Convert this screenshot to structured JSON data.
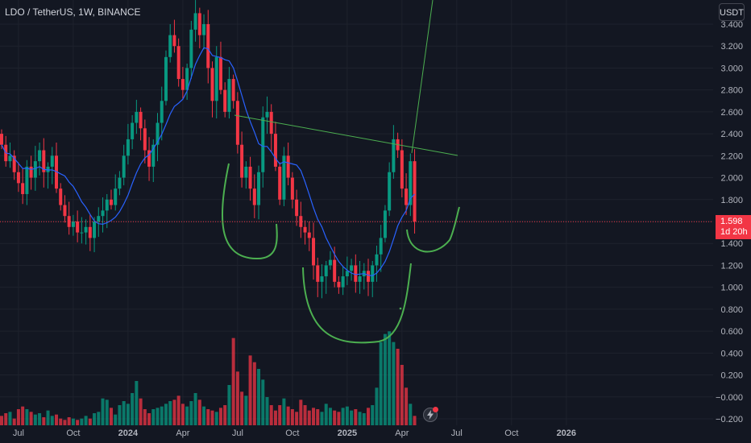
{
  "header": {
    "symbol": "LDO / TetherUS, 1W, BINANCE"
  },
  "currency_button": {
    "label": "USDT"
  },
  "price_tag": {
    "price": "1.598",
    "countdown": "1d 20h"
  },
  "chart_data": {
    "type": "candlestick",
    "symbol": "LDO / TetherUS",
    "interval": "1W",
    "exchange": "BINANCE",
    "ylim": [
      -0.25,
      3.55
    ],
    "y_ticks": [
      "3.400",
      "3.200",
      "3.000",
      "2.800",
      "2.600",
      "2.400",
      "2.200",
      "2.000",
      "1.800",
      "1.600",
      "1.400",
      "1.200",
      "1.000",
      "0.800",
      "0.600",
      "0.400",
      "0.200",
      "−0.000",
      "−0.200"
    ],
    "y_tick_values": [
      3.4,
      3.2,
      3.0,
      2.8,
      2.6,
      2.4,
      2.2,
      2.0,
      1.8,
      1.6,
      1.4,
      1.2,
      1.0,
      0.8,
      0.6,
      0.4,
      0.2,
      0.0,
      -0.2
    ],
    "x_ticks": [
      "Jul",
      "Oct",
      "2024",
      "Apr",
      "Jul",
      "Oct",
      "2025",
      "Apr",
      "Jul",
      "Oct",
      "2026"
    ],
    "x_tick_weeks": [
      4,
      17,
      30,
      43,
      56,
      69,
      82,
      95,
      108,
      121,
      134
    ],
    "last_price": 1.598,
    "up_color": "#089981",
    "down_color": "#f23645",
    "ma_color": "#2962ff",
    "close": [
      2.3,
      2.15,
      2.2,
      2.05,
      1.95,
      1.85,
      2.1,
      2.0,
      2.15,
      2.25,
      2.05,
      2.1,
      2.2,
      1.9,
      1.75,
      1.65,
      1.55,
      1.6,
      1.5,
      1.5,
      1.55,
      1.45,
      1.6,
      1.65,
      1.7,
      1.8,
      1.75,
      1.9,
      2.0,
      2.2,
      2.35,
      2.5,
      2.6,
      2.45,
      2.25,
      2.1,
      2.3,
      2.5,
      2.7,
      3.1,
      3.3,
      3.2,
      2.9,
      2.8,
      3.0,
      3.35,
      3.5,
      3.3,
      3.4,
      3.0,
      2.7,
      3.1,
      2.8,
      2.6,
      2.9,
      2.7,
      2.3,
      2.0,
      2.1,
      1.9,
      1.75,
      2.05,
      2.55,
      2.6,
      2.4,
      2.1,
      1.8,
      2.2,
      2.0,
      1.8,
      1.65,
      1.55,
      1.5,
      1.45,
      1.2,
      1.05,
      1.1,
      1.2,
      1.25,
      1.05,
      1.0,
      1.1,
      1.15,
      1.2,
      1.05,
      1.1,
      1.15,
      1.05,
      1.2,
      1.3,
      1.45,
      1.7,
      2.05,
      2.35,
      2.25,
      1.9,
      1.75,
      2.15,
      1.6
    ],
    "volume": [
      0.07,
      0.09,
      0.1,
      0.05,
      0.12,
      0.14,
      0.12,
      0.1,
      0.08,
      0.09,
      0.06,
      0.11,
      0.07,
      0.08,
      0.05,
      0.04,
      0.06,
      0.05,
      0.04,
      0.05,
      0.07,
      0.05,
      0.09,
      0.1,
      0.2,
      0.19,
      0.13,
      0.08,
      0.15,
      0.18,
      0.16,
      0.24,
      0.33,
      0.2,
      0.12,
      0.09,
      0.12,
      0.13,
      0.14,
      0.16,
      0.18,
      0.19,
      0.22,
      0.16,
      0.14,
      0.18,
      0.24,
      0.19,
      0.14,
      0.12,
      0.11,
      0.1,
      0.13,
      0.15,
      0.3,
      0.65,
      0.4,
      0.25,
      0.22,
      0.52,
      0.47,
      0.42,
      0.34,
      0.21,
      0.15,
      0.11,
      0.15,
      0.2,
      0.14,
      0.12,
      0.1,
      0.19,
      0.15,
      0.11,
      0.13,
      0.12,
      0.1,
      0.16,
      0.13,
      0.11,
      0.1,
      0.13,
      0.14,
      0.11,
      0.12,
      0.1,
      0.09,
      0.13,
      0.15,
      0.28,
      0.62,
      0.68,
      0.7,
      0.62,
      0.57,
      0.45,
      0.28,
      0.16,
      0.07
    ]
  }
}
